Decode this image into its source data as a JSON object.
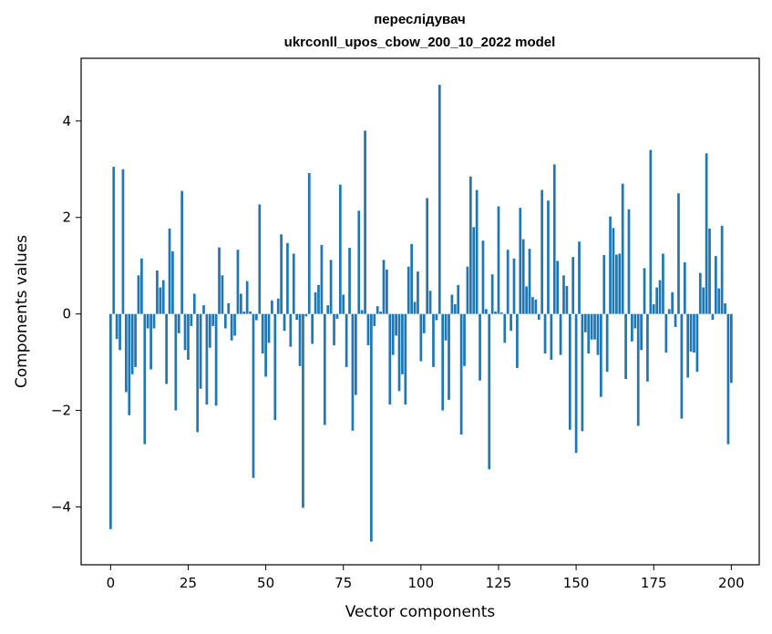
{
  "chart_data": {
    "type": "bar",
    "title": "переслідувач",
    "subtitle": "ukrconll_upos_cbow_200_10_2022 model",
    "xlabel": "Vector components",
    "ylabel": "Components values",
    "xlim": [
      -9.5,
      209
    ],
    "ylim": [
      -5.2,
      5.3
    ],
    "xticks": [
      0,
      25,
      50,
      75,
      100,
      125,
      150,
      175,
      200
    ],
    "yticks": [
      -4,
      -2,
      0,
      2,
      4
    ],
    "grid": false,
    "bar_color": "#1f77b4",
    "values": [
      -4.46,
      3.05,
      -0.52,
      -0.75,
      3.0,
      -1.62,
      -2.1,
      -1.25,
      -1.1,
      0.8,
      1.15,
      -2.7,
      -0.3,
      -1.15,
      -0.3,
      0.9,
      0.55,
      0.7,
      -1.45,
      1.77,
      1.3,
      -2.0,
      -0.4,
      2.55,
      -0.75,
      -0.95,
      -0.25,
      0.42,
      -2.45,
      -1.55,
      0.18,
      -1.88,
      -0.7,
      -0.25,
      -1.9,
      1.38,
      0.8,
      -0.3,
      0.22,
      -0.55,
      -0.45,
      1.33,
      0.42,
      0.05,
      0.68,
      0.05,
      -3.4,
      -0.13,
      2.27,
      -0.82,
      -1.3,
      -0.6,
      0.28,
      -2.2,
      0.32,
      1.65,
      -0.35,
      1.47,
      -0.68,
      1.25,
      -0.12,
      -1.08,
      -4.02,
      -0.05,
      2.92,
      -0.62,
      0.45,
      0.6,
      1.43,
      -2.3,
      0.18,
      1.12,
      -0.65,
      -0.1,
      2.68,
      0.4,
      -1.1,
      1.37,
      -2.42,
      -1.68,
      2.14,
      0.08,
      3.8,
      -0.65,
      -4.72,
      -0.25,
      0.16,
      0.05,
      1.12,
      0.92,
      -1.88,
      -0.85,
      -0.45,
      -1.6,
      -1.25,
      -1.88,
      0.98,
      1.45,
      0.25,
      0.88,
      -0.98,
      -0.4,
      2.4,
      0.48,
      -1.1,
      -0.13,
      4.75,
      -2.0,
      -0.55,
      -1.78,
      0.4,
      0.2,
      0.6,
      -2.5,
      -1.08,
      0.98,
      2.85,
      1.8,
      2.57,
      -1.38,
      1.52,
      0.1,
      -3.22,
      0.82,
      0.05,
      2.23,
      0.03,
      -0.6,
      1.33,
      -0.35,
      1.15,
      -1.12,
      2.2,
      1.55,
      0.57,
      1.35,
      0.35,
      0.3,
      -0.12,
      2.57,
      -0.82,
      2.35,
      -0.95,
      3.1,
      1.1,
      -0.85,
      0.8,
      0.58,
      -2.4,
      1.18,
      -2.88,
      1.5,
      -2.43,
      -0.38,
      -0.82,
      -0.53,
      -0.53,
      -0.85,
      -1.72,
      1.22,
      -1.2,
      2.02,
      1.78,
      1.23,
      1.25,
      2.7,
      -1.35,
      2.17,
      -0.57,
      -0.3,
      -2.32,
      -0.75,
      0.95,
      -1.4,
      3.4,
      0.2,
      0.55,
      0.7,
      1.25,
      -0.8,
      0.1,
      0.45,
      -0.27,
      2.5,
      -2.17,
      1.07,
      -1.32,
      -0.78,
      -0.8,
      -1.2,
      0.85,
      0.55,
      3.33,
      1.77,
      -0.12,
      1.2,
      0.53,
      1.83,
      0.22,
      -2.7,
      -1.43
    ]
  }
}
